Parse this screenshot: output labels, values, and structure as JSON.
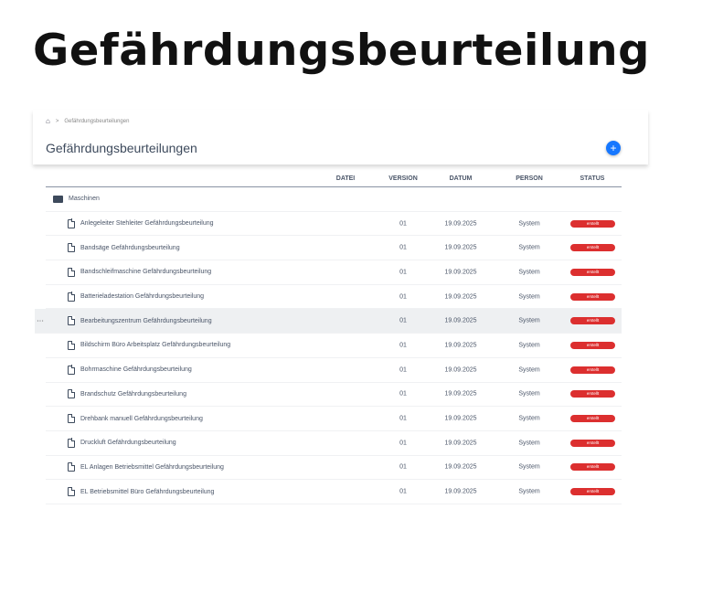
{
  "hero_title": "Gefährdungsbeurteilung",
  "breadcrumb": {
    "home_icon": "home-icon",
    "current": "Gefährdungsbeurteilungen",
    "separator": ">"
  },
  "page_title": "Gefährdungsbeurteilungen",
  "add_button": "+",
  "columns": [
    "DATEI",
    "VERSION",
    "DATUM",
    "PERSON",
    "STATUS"
  ],
  "folder": {
    "name": "Maschinen",
    "icon": "folder-open-icon"
  },
  "status_color": "#dc2f2f",
  "accent_color": "#1677ff",
  "row_menu": "···",
  "rows": [
    {
      "name": "Anlegeleiter Stehleiter Gefährdungsbeurteilung",
      "version": "01",
      "datum": "19.09.2025",
      "person": "System",
      "status": "erstellt"
    },
    {
      "name": "Bandsäge Gefährdungsbeurteilung",
      "version": "01",
      "datum": "19.09.2025",
      "person": "System",
      "status": "erstellt"
    },
    {
      "name": "Bandschleifmaschine Gefährdungsbeurteilung",
      "version": "01",
      "datum": "19.09.2025",
      "person": "System",
      "status": "erstellt"
    },
    {
      "name": "Batterieladestation Gefährdungsbeurteilung",
      "version": "01",
      "datum": "19.09.2025",
      "person": "System",
      "status": "erstellt"
    },
    {
      "name": "Bearbeitungszentrum Gefährdungsbeurteilung",
      "version": "01",
      "datum": "19.09.2025",
      "person": "System",
      "status": "erstellt"
    },
    {
      "name": "Bildschirm Büro Arbeitsplatz Gefährdungsbeurteilung",
      "version": "01",
      "datum": "19.09.2025",
      "person": "System",
      "status": "erstellt"
    },
    {
      "name": "Bohrmaschine Gefährdungsbeurteilung",
      "version": "01",
      "datum": "19.09.2025",
      "person": "System",
      "status": "erstellt"
    },
    {
      "name": "Brandschutz Gefährdungsbeurteilung",
      "version": "01",
      "datum": "19.09.2025",
      "person": "System",
      "status": "erstellt"
    },
    {
      "name": "Drehbank manuell Gefährdungsbeurteilung",
      "version": "01",
      "datum": "19.09.2025",
      "person": "System",
      "status": "erstellt"
    },
    {
      "name": "Druckluft Gefährdungsbeurteilung",
      "version": "01",
      "datum": "19.09.2025",
      "person": "System",
      "status": "erstellt"
    },
    {
      "name": "EL Anlagen Betriebsmittel Gefährdungsbeurteilung",
      "version": "01",
      "datum": "19.09.2025",
      "person": "System",
      "status": "erstellt"
    },
    {
      "name": "EL Betriebsmittel Büro Gefährdungsbeurteilung",
      "version": "01",
      "datum": "19.09.2025",
      "person": "System",
      "status": "erstellt"
    }
  ]
}
